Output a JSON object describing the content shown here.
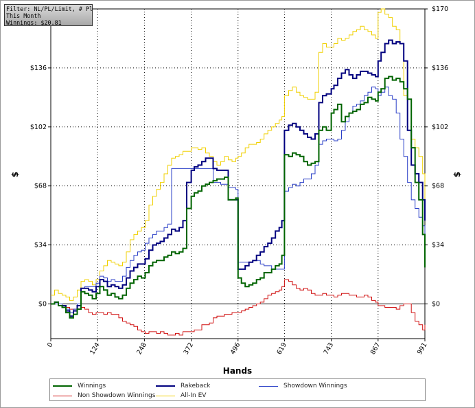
{
  "info_box": {
    "line1": "Filter: NL/PL/Limit, # Players",
    "line2": "This Month",
    "line3": "Winnings: $20.81"
  },
  "chart_data": {
    "type": "line",
    "xlabel": "Hands",
    "ylabel": "$",
    "xlim": [
      0,
      991
    ],
    "ylim": [
      -20,
      170
    ],
    "x_ticks": [
      0,
      124,
      248,
      372,
      496,
      619,
      743,
      867,
      991
    ],
    "y_ticks": [
      0,
      34,
      68,
      102,
      136,
      170
    ],
    "y_tick_labels": [
      "$0",
      "$34",
      "$68",
      "$102",
      "$136",
      "$170"
    ],
    "grid": true,
    "legend_position": "bottom",
    "series": [
      {
        "name": "Winnings",
        "color": "#006400",
        "width": 2,
        "x": [
          0,
          10,
          20,
          30,
          40,
          50,
          60,
          70,
          80,
          90,
          100,
          110,
          120,
          130,
          140,
          150,
          160,
          170,
          180,
          190,
          200,
          210,
          220,
          230,
          240,
          250,
          260,
          270,
          280,
          290,
          300,
          310,
          320,
          330,
          340,
          350,
          360,
          372,
          380,
          390,
          400,
          410,
          420,
          430,
          440,
          450,
          460,
          470,
          480,
          490,
          496,
          505,
          515,
          525,
          535,
          545,
          555,
          565,
          575,
          585,
          595,
          605,
          612,
          619,
          630,
          640,
          650,
          660,
          670,
          680,
          690,
          700,
          710,
          720,
          730,
          743,
          750,
          760,
          770,
          780,
          790,
          800,
          810,
          820,
          830,
          840,
          850,
          860,
          867,
          875,
          885,
          895,
          905,
          915,
          925,
          935,
          945,
          955,
          965,
          975,
          985,
          991
        ],
        "y": [
          0,
          1,
          -1,
          -2,
          -5,
          -8,
          -6,
          -3,
          7,
          6,
          5,
          3,
          6,
          10,
          8,
          5,
          6,
          4,
          3,
          5,
          9,
          12,
          14,
          16,
          15,
          18,
          22,
          24,
          25,
          25,
          27,
          28,
          30,
          29,
          30,
          32,
          55,
          62,
          64,
          65,
          68,
          69,
          70,
          71,
          72,
          72,
          73,
          60,
          60,
          61,
          15,
          12,
          10,
          11,
          12,
          14,
          15,
          18,
          18,
          20,
          22,
          23,
          28,
          86,
          85,
          87,
          86,
          85,
          82,
          80,
          81,
          82,
          100,
          102,
          100,
          110,
          112,
          115,
          105,
          108,
          110,
          111,
          112,
          115,
          116,
          119,
          118,
          117,
          122,
          124,
          130,
          131,
          129,
          130,
          128,
          124,
          118,
          90,
          70,
          60,
          40,
          21
        ]
      },
      {
        "name": "Rakeback",
        "color": "#00007f",
        "width": 2,
        "x": [
          0,
          10,
          20,
          30,
          40,
          50,
          60,
          70,
          80,
          90,
          100,
          110,
          120,
          130,
          140,
          150,
          160,
          170,
          180,
          190,
          200,
          210,
          220,
          230,
          240,
          250,
          260,
          270,
          280,
          290,
          300,
          310,
          320,
          330,
          340,
          350,
          360,
          372,
          380,
          390,
          400,
          410,
          420,
          430,
          440,
          450,
          460,
          470,
          480,
          490,
          496,
          505,
          515,
          525,
          535,
          545,
          555,
          565,
          575,
          585,
          595,
          605,
          612,
          619,
          630,
          640,
          650,
          660,
          670,
          680,
          690,
          700,
          710,
          720,
          730,
          743,
          750,
          760,
          770,
          780,
          790,
          800,
          810,
          820,
          830,
          840,
          850,
          860,
          867,
          875,
          885,
          895,
          905,
          915,
          925,
          935,
          945,
          955,
          965,
          975,
          985,
          991
        ],
        "y": [
          0,
          1,
          -1,
          -1,
          -4,
          -7,
          -4,
          -1,
          9,
          9,
          8,
          7,
          10,
          14,
          13,
          10,
          11,
          10,
          9,
          11,
          15,
          19,
          21,
          23,
          23,
          26,
          31,
          34,
          35,
          36,
          38,
          40,
          43,
          42,
          44,
          48,
          70,
          77,
          79,
          80,
          82,
          84,
          84,
          78,
          77,
          77,
          77,
          60,
          60,
          60,
          20,
          20,
          22,
          24,
          25,
          28,
          30,
          33,
          35,
          38,
          42,
          44,
          48,
          100,
          103,
          104,
          102,
          100,
          98,
          96,
          95,
          98,
          116,
          120,
          121,
          124,
          126,
          130,
          133,
          135,
          132,
          130,
          132,
          134,
          134,
          133,
          132,
          131,
          140,
          145,
          150,
          152,
          150,
          151,
          150,
          140,
          100,
          80,
          75,
          70,
          60,
          48
        ]
      },
      {
        "name": "Showdown Winnings",
        "color": "#2a3fc7",
        "width": 1,
        "x": [
          0,
          10,
          20,
          30,
          40,
          50,
          60,
          70,
          80,
          90,
          100,
          110,
          120,
          130,
          140,
          150,
          160,
          170,
          180,
          190,
          200,
          210,
          220,
          230,
          240,
          250,
          260,
          270,
          280,
          290,
          300,
          310,
          320,
          330,
          340,
          350,
          360,
          372,
          380,
          390,
          400,
          410,
          420,
          430,
          440,
          450,
          460,
          470,
          480,
          490,
          496,
          505,
          515,
          525,
          535,
          545,
          555,
          565,
          575,
          585,
          595,
          605,
          612,
          619,
          630,
          640,
          650,
          660,
          670,
          680,
          690,
          700,
          710,
          720,
          730,
          743,
          750,
          760,
          770,
          780,
          790,
          800,
          810,
          820,
          830,
          840,
          850,
          860,
          867,
          875,
          885,
          895,
          905,
          915,
          925,
          935,
          945,
          955,
          965,
          975,
          985,
          991
        ],
        "y": [
          0,
          0,
          0,
          -1,
          -3,
          -5,
          -3,
          0,
          9,
          10,
          10,
          10,
          12,
          16,
          15,
          13,
          14,
          13,
          13,
          16,
          21,
          25,
          28,
          30,
          31,
          35,
          38,
          40,
          42,
          42,
          44,
          46,
          78,
          78,
          78,
          78,
          78,
          78,
          78,
          78,
          78,
          78,
          78,
          70,
          70,
          69,
          69,
          67,
          67,
          66,
          24,
          24,
          24,
          24,
          25,
          25,
          23,
          22,
          22,
          20,
          20,
          20,
          20,
          65,
          67,
          69,
          68,
          70,
          72,
          72,
          75,
          80,
          92,
          94,
          95,
          95,
          94,
          95,
          100,
          105,
          110,
          114,
          115,
          117,
          120,
          122,
          125,
          124,
          120,
          122,
          125,
          120,
          118,
          110,
          95,
          85,
          70,
          60,
          55,
          50,
          45,
          40
        ]
      },
      {
        "name": "Non Showdown Winnings",
        "color": "#d01010",
        "width": 1,
        "x": [
          0,
          10,
          20,
          30,
          40,
          50,
          60,
          70,
          80,
          90,
          100,
          110,
          120,
          130,
          140,
          150,
          160,
          170,
          180,
          190,
          200,
          210,
          220,
          230,
          240,
          250,
          260,
          270,
          280,
          290,
          300,
          310,
          320,
          330,
          340,
          350,
          360,
          372,
          380,
          390,
          400,
          410,
          420,
          430,
          440,
          450,
          460,
          470,
          480,
          490,
          496,
          505,
          515,
          525,
          535,
          545,
          555,
          565,
          575,
          585,
          595,
          605,
          612,
          619,
          630,
          640,
          650,
          660,
          670,
          680,
          690,
          700,
          710,
          720,
          730,
          743,
          750,
          760,
          770,
          780,
          790,
          800,
          810,
          820,
          830,
          840,
          850,
          860,
          867,
          875,
          885,
          895,
          905,
          915,
          925,
          935,
          945,
          955,
          965,
          975,
          985,
          991
        ],
        "y": [
          0,
          1,
          0,
          -1,
          -2,
          -3,
          -3,
          -3,
          -2,
          -3,
          -5,
          -6,
          -5,
          -5,
          -6,
          -5,
          -6,
          -6,
          -8,
          -10,
          -11,
          -12,
          -13,
          -15,
          -16,
          -17,
          -16,
          -16,
          -17,
          -16,
          -17,
          -18,
          -18,
          -17,
          -18,
          -16,
          -16,
          -16,
          -15,
          -15,
          -12,
          -12,
          -11,
          -8,
          -7,
          -7,
          -6,
          -6,
          -5,
          -5,
          -5,
          -4,
          -3,
          -2,
          -1,
          0,
          1,
          3,
          5,
          6,
          7,
          8,
          10,
          14,
          13,
          11,
          9,
          8,
          9,
          8,
          6,
          5,
          5,
          6,
          5,
          5,
          4,
          5,
          6,
          6,
          5,
          5,
          4,
          4,
          5,
          4,
          2,
          1,
          -1,
          -1,
          -2,
          -2,
          -2,
          -3,
          -1,
          0,
          0,
          -5,
          -10,
          -12,
          -15,
          -12
        ]
      },
      {
        "name": "All-In EV",
        "color": "#f0d000",
        "width": 1,
        "x": [
          0,
          10,
          20,
          30,
          40,
          50,
          60,
          70,
          80,
          90,
          100,
          110,
          120,
          130,
          140,
          150,
          160,
          170,
          180,
          190,
          200,
          210,
          220,
          230,
          240,
          250,
          260,
          270,
          280,
          290,
          300,
          310,
          320,
          330,
          340,
          350,
          360,
          372,
          380,
          390,
          400,
          410,
          420,
          430,
          440,
          450,
          460,
          470,
          480,
          490,
          496,
          505,
          515,
          525,
          535,
          545,
          555,
          565,
          575,
          585,
          595,
          605,
          612,
          619,
          630,
          640,
          650,
          660,
          670,
          680,
          690,
          700,
          710,
          720,
          730,
          743,
          750,
          760,
          770,
          780,
          790,
          800,
          810,
          820,
          830,
          840,
          850,
          860,
          867,
          875,
          885,
          895,
          905,
          915,
          925,
          935,
          945,
          955,
          965,
          975,
          985,
          991
        ],
        "y": [
          5,
          8,
          6,
          5,
          4,
          2,
          4,
          8,
          13,
          14,
          13,
          11,
          14,
          19,
          22,
          25,
          24,
          23,
          22,
          24,
          30,
          37,
          40,
          42,
          44,
          48,
          57,
          62,
          66,
          70,
          75,
          80,
          84,
          85,
          86,
          88,
          88,
          90,
          90,
          89,
          90,
          87,
          85,
          82,
          80,
          82,
          85,
          83,
          82,
          84,
          85,
          87,
          90,
          92,
          92,
          93,
          95,
          98,
          100,
          102,
          104,
          106,
          108,
          120,
          123,
          125,
          122,
          120,
          119,
          118,
          118,
          122,
          145,
          150,
          148,
          148,
          150,
          153,
          152,
          153,
          155,
          157,
          158,
          160,
          158,
          157,
          155,
          153,
          168,
          170,
          167,
          165,
          160,
          158,
          150,
          120,
          100,
          95,
          90,
          85,
          75,
          60
        ]
      }
    ]
  },
  "legend": [
    {
      "label": "Winnings",
      "color": "#006400"
    },
    {
      "label": "Rakeback",
      "color": "#00007f"
    },
    {
      "label": "Showdown Winnings",
      "color": "#2a3fc7"
    },
    {
      "label": "Non Showdown Winnings",
      "color": "#d01010"
    },
    {
      "label": "All-In EV",
      "color": "#f0d000"
    }
  ]
}
